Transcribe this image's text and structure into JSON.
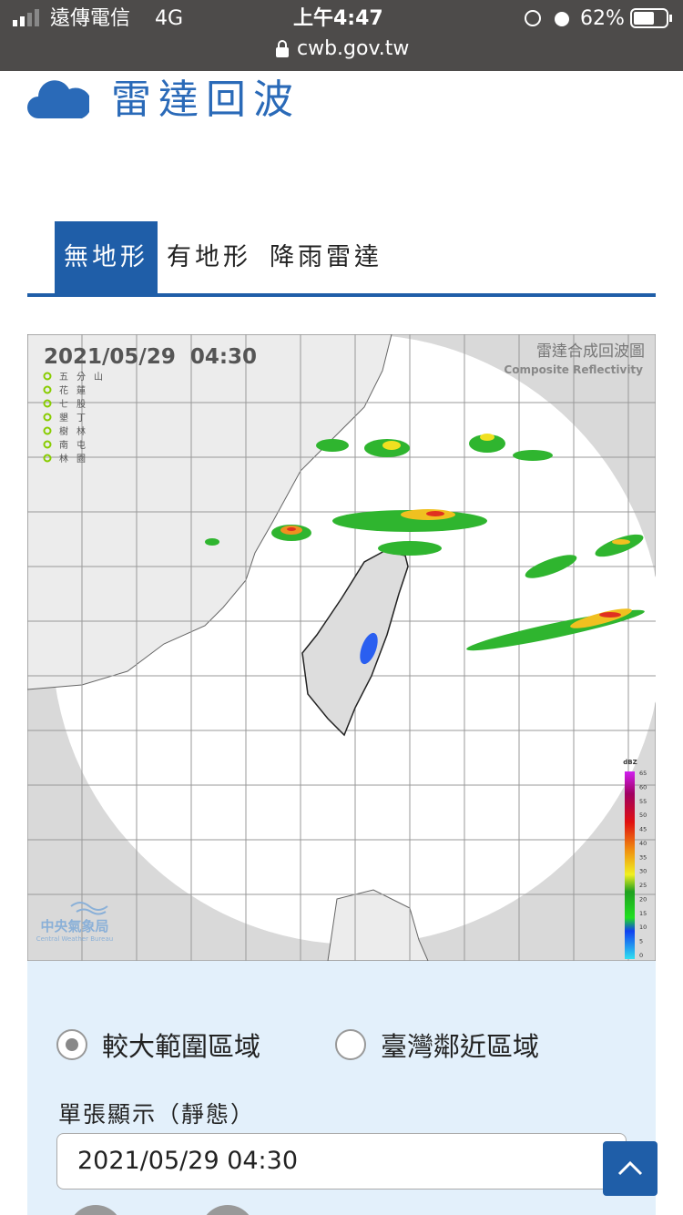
{
  "status_bar": {
    "carrier": "遠傳電信",
    "network": "4G",
    "time": "上午4:47",
    "battery": "62%",
    "url": "cwb.gov.tw"
  },
  "header": {
    "title": "雷達回波"
  },
  "tabs": [
    {
      "label": "無地形",
      "active": true
    },
    {
      "label": "有地形",
      "active": false
    },
    {
      "label": "降雨雷達",
      "active": false
    }
  ],
  "radar": {
    "timestamp": "2021/05/29  04:30",
    "title": "雷達合成回波圖",
    "subtitle": "Composite Reflectivity",
    "stations": [
      "五分山",
      "花蓮",
      "七股",
      "墾丁",
      "樹林",
      "南屯",
      "林園"
    ],
    "legend_unit": "dBZ",
    "legend_values": [
      65,
      60,
      55,
      50,
      45,
      40,
      35,
      30,
      25,
      20,
      15,
      10,
      5,
      0
    ],
    "agency": "中央氣象局",
    "agency_en": "Central Weather Bureau"
  },
  "controls": {
    "options": [
      {
        "label": "較大範圍區域",
        "selected": true
      },
      {
        "label": "臺灣鄰近區域",
        "selected": false
      }
    ],
    "mode_label": "單張顯示（靜態）",
    "select_value": "2021/05/29 04:30"
  }
}
